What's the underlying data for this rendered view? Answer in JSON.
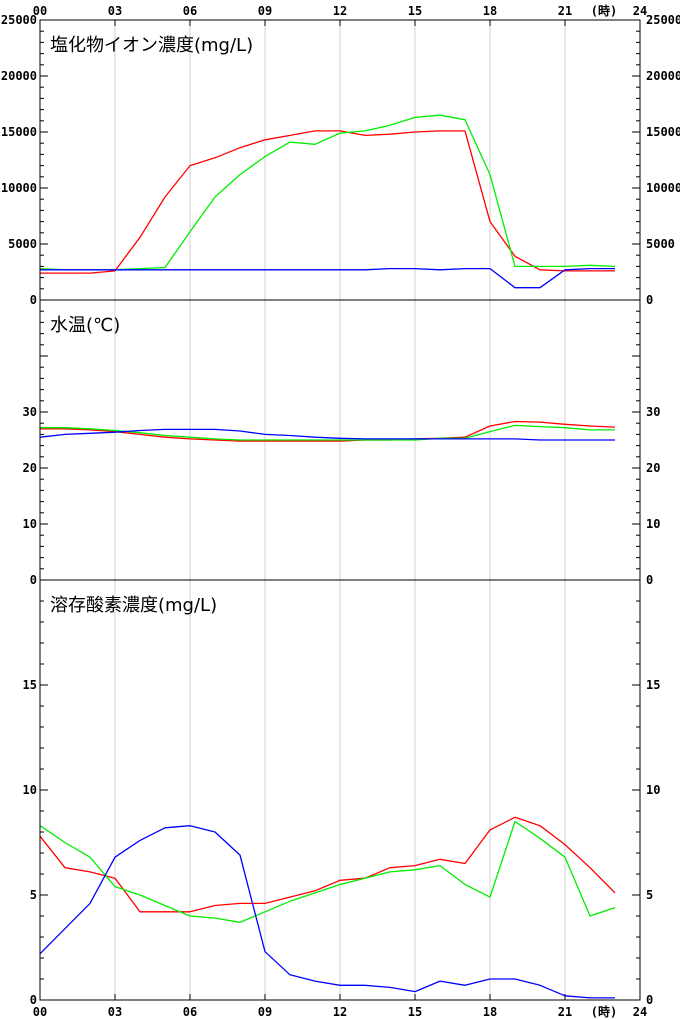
{
  "chart_data": {
    "type": "line",
    "x_label_unit": "(時)",
    "x_ticks": [
      "00",
      "03",
      "06",
      "09",
      "12",
      "15",
      "18",
      "21",
      "24"
    ],
    "x": [
      0,
      1,
      2,
      3,
      4,
      5,
      6,
      7,
      8,
      9,
      10,
      11,
      12,
      13,
      14,
      15,
      16,
      17,
      18,
      19,
      20,
      21,
      22,
      23
    ],
    "xlim": [
      0,
      24
    ],
    "grid": "vertical lines every 3 hours",
    "colors": {
      "red": "#ff0000",
      "green": "#00ee00",
      "blue": "#0000ff"
    },
    "panels": [
      {
        "title": "塩化物イオン濃度(mg/L)",
        "ylim": [
          0,
          25000
        ],
        "y_ticks": [
          "0",
          "5000",
          "10000",
          "15000",
          "20000",
          "25000"
        ],
        "y_tick_values": [
          0,
          5000,
          10000,
          15000,
          20000,
          25000
        ],
        "series": [
          {
            "color": "#ff0000",
            "values": [
              2400,
              2400,
              2400,
              2600,
              5600,
              9200,
              12000,
              12700,
              13600,
              14300,
              14700,
              15100,
              15100,
              14700,
              14800,
              15000,
              15100,
              15100,
              7000,
              3900,
              2700,
              2600,
              2600,
              2600
            ]
          },
          {
            "color": "#00ee00",
            "values": [
              2800,
              2700,
              2700,
              2700,
              2800,
              2900,
              6100,
              9200,
              11200,
              12800,
              14100,
              13900,
              14900,
              15100,
              15600,
              16300,
              16500,
              16100,
              11200,
              3000,
              3000,
              3000,
              3100,
              3000
            ]
          },
          {
            "color": "#0000ff",
            "values": [
              2700,
              2700,
              2700,
              2700,
              2700,
              2700,
              2700,
              2700,
              2700,
              2700,
              2700,
              2700,
              2700,
              2700,
              2800,
              2800,
              2700,
              2800,
              2800,
              1100,
              1100,
              2700,
              2800,
              2800
            ]
          }
        ]
      },
      {
        "title": "水温(℃)",
        "ylim": [
          0,
          50
        ],
        "y_ticks": [
          "0",
          "10",
          "20",
          "30"
        ],
        "y_tick_values": [
          0,
          10,
          20,
          30
        ],
        "series": [
          {
            "color": "#ff0000",
            "values": [
              27.0,
              27.0,
              26.8,
              26.5,
              26.0,
              25.5,
              25.2,
              25.0,
              24.8,
              24.8,
              24.8,
              24.8,
              24.8,
              25.0,
              25.0,
              25.2,
              25.3,
              25.5,
              27.5,
              28.3,
              28.2,
              27.8,
              27.5,
              27.3
            ]
          },
          {
            "color": "#00ee00",
            "values": [
              27.2,
              27.2,
              27.0,
              26.7,
              26.3,
              25.8,
              25.5,
              25.2,
              25.0,
              25.0,
              25.0,
              25.0,
              25.0,
              25.0,
              25.0,
              25.0,
              25.3,
              25.3,
              26.5,
              27.6,
              27.4,
              27.2,
              26.8,
              26.8
            ]
          },
          {
            "color": "#0000ff",
            "values": [
              25.5,
              26.0,
              26.2,
              26.4,
              26.7,
              26.9,
              26.9,
              26.9,
              26.6,
              26.0,
              25.8,
              25.5,
              25.3,
              25.2,
              25.2,
              25.2,
              25.2,
              25.2,
              25.2,
              25.2,
              25.0,
              25.0,
              25.0,
              25.0
            ]
          }
        ]
      },
      {
        "title": "溶存酸素濃度(mg/L)",
        "ylim": [
          0,
          20
        ],
        "y_ticks": [
          "0",
          "5",
          "10",
          "15"
        ],
        "y_tick_values": [
          0,
          5,
          10,
          15
        ],
        "series": [
          {
            "color": "#ff0000",
            "values": [
              7.8,
              6.3,
              6.1,
              5.8,
              4.2,
              4.2,
              4.2,
              4.5,
              4.6,
              4.6,
              4.9,
              5.2,
              5.7,
              5.8,
              6.3,
              6.4,
              6.7,
              6.5,
              8.1,
              8.7,
              8.3,
              7.4,
              6.3,
              5.1
            ]
          },
          {
            "color": "#00ee00",
            "values": [
              8.3,
              7.5,
              6.8,
              5.4,
              5.0,
              4.5,
              4.0,
              3.9,
              3.7,
              4.2,
              4.7,
              5.1,
              5.5,
              5.8,
              6.1,
              6.2,
              6.4,
              5.5,
              4.9,
              8.5,
              7.7,
              6.8,
              4.0,
              4.4
            ]
          },
          {
            "color": "#0000ff",
            "values": [
              2.2,
              3.4,
              4.6,
              6.8,
              7.6,
              8.2,
              8.3,
              8.0,
              6.9,
              2.3,
              1.2,
              0.9,
              0.7,
              0.7,
              0.6,
              0.4,
              0.9,
              0.7,
              1.0,
              1.0,
              0.7,
              0.2,
              0.1,
              0.1
            ]
          }
        ]
      }
    ]
  }
}
